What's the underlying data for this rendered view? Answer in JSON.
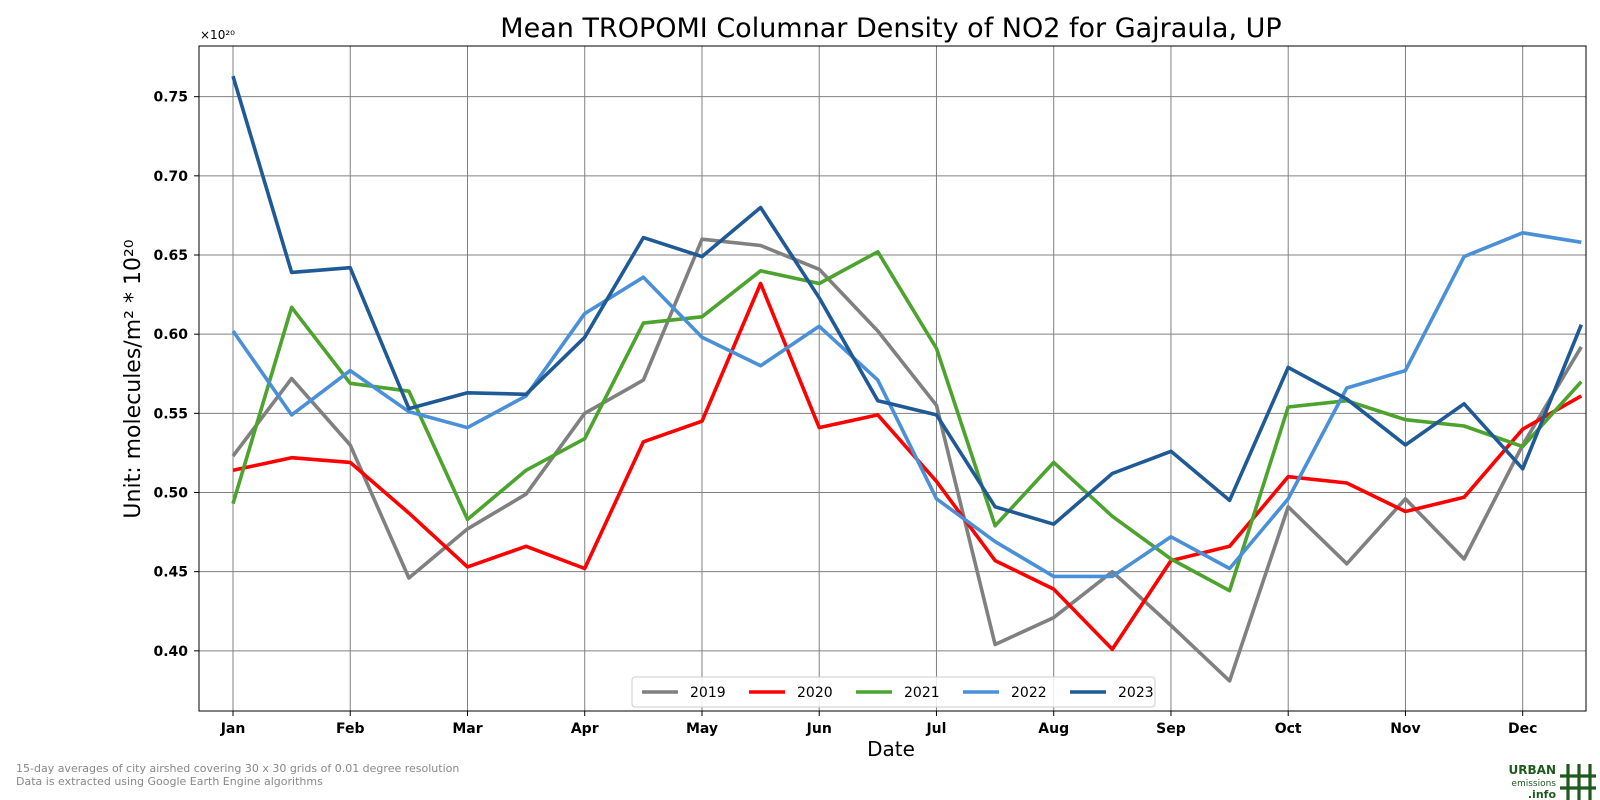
{
  "chart_data": {
    "type": "line",
    "title": "Mean TROPOMI Columnar Density of NO2 for Gajraula, UP",
    "xlabel": "Date",
    "ylabel": "Unit: molecules/m² * 10²⁰",
    "y_multiplier": "×10²⁰",
    "ylim": [
      0.362,
      0.782
    ],
    "xlim": [
      -0.58,
      23.08
    ],
    "x_ticks": [
      0,
      2,
      4,
      6,
      8,
      10,
      12,
      14,
      16,
      18,
      20,
      22
    ],
    "x_tick_labels": [
      "Jan",
      "Feb",
      "Mar",
      "Apr",
      "May",
      "Jun",
      "Jul",
      "Aug",
      "Sep",
      "Oct",
      "Nov",
      "Dec"
    ],
    "y_ticks": [
      0.4,
      0.45,
      0.5,
      0.55,
      0.6,
      0.65,
      0.7,
      0.75
    ],
    "y_tick_labels": [
      "0.40",
      "0.45",
      "0.50",
      "0.55",
      "0.60",
      "0.65",
      "0.70",
      "0.75"
    ],
    "grid": true,
    "legend_placement": "bottom-center",
    "x": [
      0,
      1,
      2,
      3,
      4,
      5,
      6,
      7,
      8,
      9,
      10,
      11,
      12,
      13,
      14,
      15,
      16,
      17,
      18,
      19,
      20,
      21,
      22,
      23
    ],
    "series": [
      {
        "name": "2019",
        "color": "#808080",
        "values": [
          0.523,
          0.572,
          0.53,
          0.446,
          0.477,
          0.499,
          0.55,
          0.571,
          0.66,
          0.656,
          0.641,
          0.602,
          0.555,
          0.404,
          0.421,
          0.45,
          0.416,
          0.381,
          0.491,
          0.455,
          0.496,
          0.458,
          0.53,
          0.592
        ]
      },
      {
        "name": "2020",
        "color": "#ff0000",
        "values": [
          0.514,
          0.522,
          0.519,
          0.487,
          0.453,
          0.466,
          0.452,
          0.532,
          0.545,
          0.632,
          0.541,
          0.549,
          0.507,
          0.457,
          0.439,
          0.401,
          0.457,
          0.466,
          0.51,
          0.506,
          0.488,
          0.497,
          0.54,
          0.561
        ]
      },
      {
        "name": "2021",
        "color": "#4ca32d",
        "values": [
          0.493,
          0.617,
          0.569,
          0.564,
          0.483,
          0.514,
          0.534,
          0.607,
          0.611,
          0.64,
          0.632,
          0.652,
          0.591,
          0.479,
          0.519,
          0.485,
          0.458,
          0.438,
          0.554,
          0.558,
          0.546,
          0.542,
          0.529,
          0.57
        ]
      },
      {
        "name": "2022",
        "color": "#4a90d9",
        "values": [
          0.602,
          0.549,
          0.577,
          0.551,
          0.541,
          0.561,
          0.613,
          0.636,
          0.598,
          0.58,
          0.605,
          0.571,
          0.496,
          0.469,
          0.447,
          0.447,
          0.472,
          0.452,
          0.496,
          0.566,
          0.577,
          0.649,
          0.664,
          0.658
        ]
      },
      {
        "name": "2023",
        "color": "#1f5a96",
        "values": [
          0.763,
          0.639,
          0.642,
          0.553,
          0.563,
          0.562,
          0.598,
          0.661,
          0.649,
          0.68,
          0.623,
          0.558,
          0.549,
          0.491,
          0.48,
          0.512,
          0.526,
          0.495,
          0.579,
          0.559,
          0.53,
          0.556,
          0.515,
          0.606
        ]
      }
    ]
  },
  "footnotes": {
    "line1": "15-day averages of city airshed covering 30 x 30 grids of 0.01 degree resolution",
    "line2": "Data is extracted using Google Earth Engine algorithms"
  },
  "logo": {
    "line1": "URBAN",
    "line2": "emissions",
    "line3": ".info",
    "color": "#1e5a1e"
  }
}
